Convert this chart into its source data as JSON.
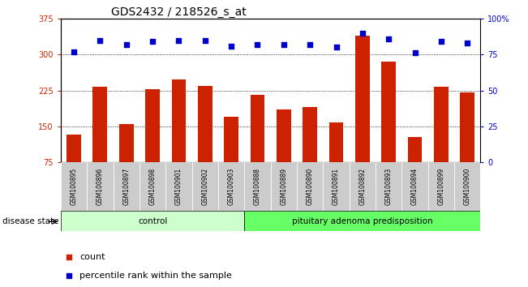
{
  "title": "GDS2432 / 218526_s_at",
  "samples": [
    "GSM100895",
    "GSM100896",
    "GSM100897",
    "GSM100898",
    "GSM100901",
    "GSM100902",
    "GSM100903",
    "GSM100888",
    "GSM100889",
    "GSM100890",
    "GSM100891",
    "GSM100892",
    "GSM100893",
    "GSM100894",
    "GSM100899",
    "GSM100900"
  ],
  "counts": [
    133,
    232,
    155,
    228,
    248,
    235,
    170,
    215,
    185,
    190,
    158,
    340,
    285,
    127,
    232,
    220
  ],
  "percentiles": [
    77,
    85,
    82,
    84,
    85,
    85,
    81,
    82,
    82,
    82,
    80,
    90,
    86,
    76,
    84,
    83
  ],
  "control_count": 7,
  "disease_count": 9,
  "bar_color": "#cc2200",
  "dot_color": "#0000cc",
  "ylim_left": [
    75,
    375
  ],
  "ylim_right": [
    0,
    100
  ],
  "yticks_left": [
    75,
    150,
    225,
    300,
    375
  ],
  "yticks_right": [
    0,
    25,
    50,
    75,
    100
  ],
  "grid_values": [
    150,
    225,
    300
  ],
  "control_label": "control",
  "disease_label": "pituitary adenoma predisposition",
  "disease_state_label": "disease state",
  "legend_count": "count",
  "legend_pct": "percentile rank within the sample",
  "control_color": "#ccffcc",
  "disease_color": "#66ff66",
  "bg_color": "#cccccc",
  "title_fontsize": 10,
  "tick_fontsize": 7,
  "bar_width": 0.55,
  "pct_scale": [
    75,
    100
  ]
}
